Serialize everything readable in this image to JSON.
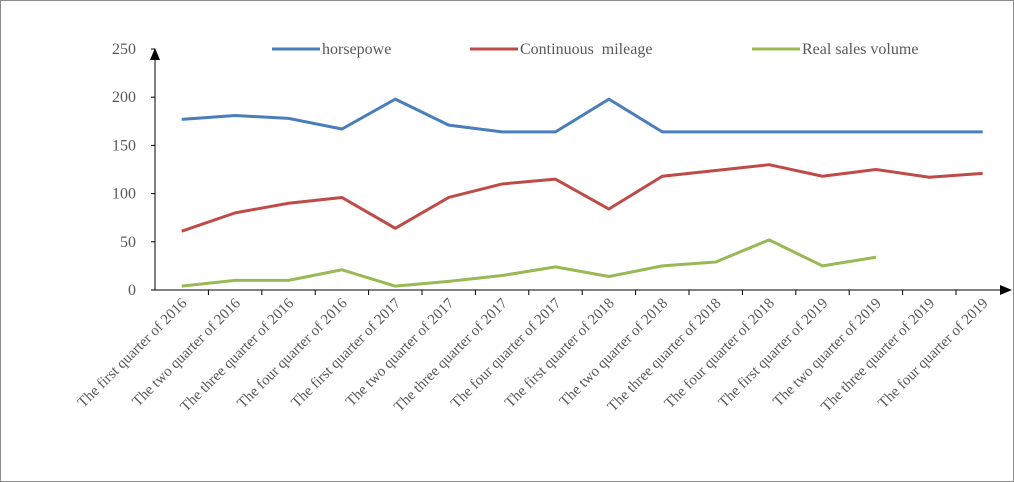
{
  "chart_data": {
    "type": "line",
    "categories": [
      "The first quarter of 2016",
      "The two quarter of 2016",
      "The three quarter of 2016",
      "The four quarter of 2016",
      "The first quarter of 2017",
      "The two quarter of 2017",
      "The three quarter of 2017",
      "The four quarter of 2017",
      "The first quarter of 2018",
      "The two quarter of 2018",
      "The three quarter of 2018",
      "The four quarter of 2018",
      "The first quarter of 2019",
      "The two quarter of 2019",
      "The three quarter of 2019",
      "The four quarter of 2019"
    ],
    "series": [
      {
        "name": "horsepowe",
        "color": "#4a7ebb",
        "values": [
          177,
          181,
          178,
          167,
          198,
          171,
          164,
          164,
          198,
          164,
          164,
          164,
          164,
          164,
          164,
          164
        ]
      },
      {
        "name": "Continuous  mileage",
        "color": "#be4b48",
        "values": [
          61,
          80,
          90,
          96,
          64,
          96,
          110,
          115,
          84,
          118,
          124,
          130,
          118,
          125,
          117,
          121
        ]
      },
      {
        "name": "Real sales volume",
        "color": "#98b954",
        "values": [
          4,
          10,
          10,
          21,
          4,
          9,
          15,
          24,
          14,
          25,
          29,
          52,
          25,
          34,
          null,
          null
        ]
      }
    ],
    "ylim": [
      0,
      250
    ],
    "yticks": [
      0,
      50,
      100,
      150,
      200,
      250
    ],
    "grid": false
  }
}
